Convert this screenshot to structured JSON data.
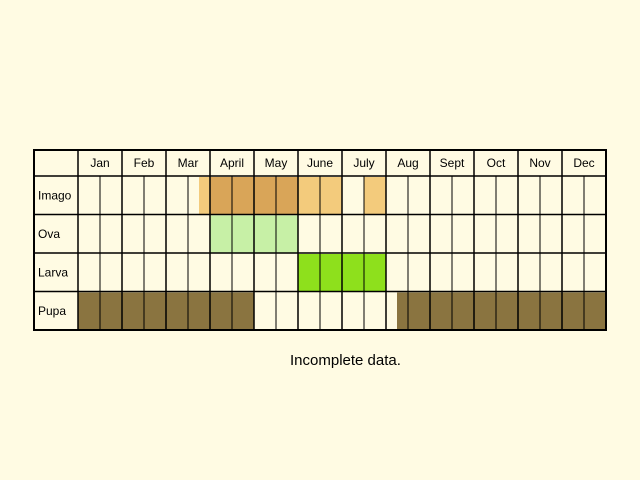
{
  "chart_data": {
    "type": "table",
    "title": "",
    "months": [
      "Jan",
      "Feb",
      "Mar",
      "April",
      "May",
      "June",
      "July",
      "Aug",
      "Sept",
      "Oct",
      "Nov",
      "Dec"
    ],
    "periods_per_month": 2,
    "stages": [
      {
        "name": "Imago",
        "cells": [
          0,
          0,
          0,
          0,
          0,
          1,
          2,
          2,
          2,
          2,
          1,
          1,
          0,
          1,
          0,
          0,
          0,
          0,
          0,
          0,
          0,
          0,
          0,
          0
        ],
        "partial_start": [
          {
            "cell": 5,
            "fraction": 0.5
          }
        ]
      },
      {
        "name": "Ova",
        "cells": [
          0,
          0,
          0,
          0,
          0,
          0,
          3,
          3,
          3,
          3,
          0,
          0,
          0,
          0,
          0,
          0,
          0,
          0,
          0,
          0,
          0,
          0,
          0,
          0
        ]
      },
      {
        "name": "Larva",
        "cells": [
          0,
          0,
          0,
          0,
          0,
          0,
          0,
          0,
          0,
          0,
          4,
          4,
          4,
          4,
          0,
          0,
          0,
          0,
          0,
          0,
          0,
          0,
          0,
          0
        ]
      },
      {
        "name": "Pupa",
        "cells": [
          5,
          5,
          5,
          5,
          5,
          5,
          5,
          5,
          0,
          0,
          0,
          0,
          0,
          0,
          5,
          5,
          5,
          5,
          5,
          5,
          5,
          5,
          5,
          5
        ],
        "partial_start": [
          {
            "cell": 14,
            "fraction": 0.5
          }
        ]
      }
    ],
    "colors": {
      "0": "#FFFBE3",
      "1": "#F3CB7C",
      "2": "#D9A558",
      "3": "#C7F0A6",
      "4": "#8EE01C",
      "5": "#8A7440"
    },
    "grid_color": "#000000",
    "note": "Incomplete data."
  }
}
